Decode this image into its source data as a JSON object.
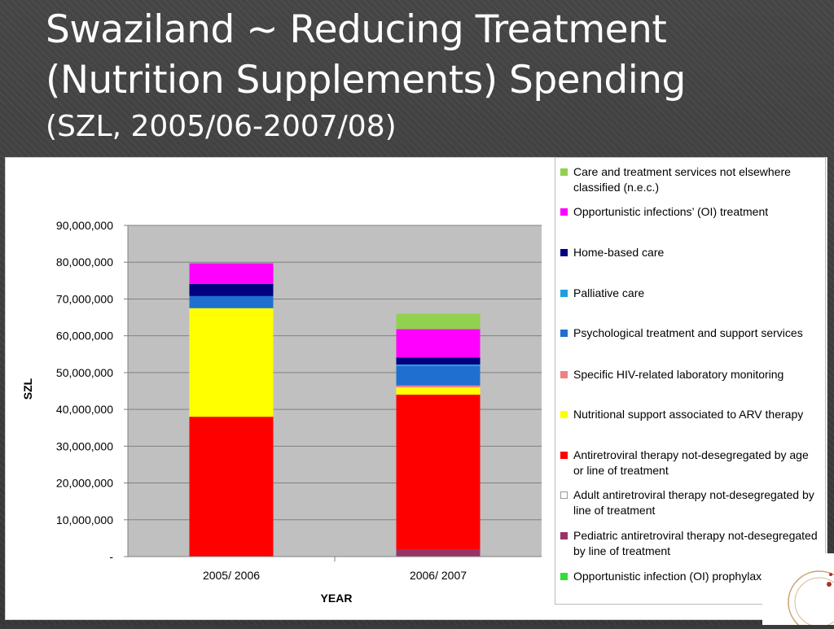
{
  "slide": {
    "title_line1": "Swaziland ~ Reducing Treatment",
    "title_line2": "(Nutrition Supplements) Spending",
    "title_line3": "(SZL, 2005/06-2007/08)"
  },
  "chart_data": {
    "type": "bar",
    "stacked": true,
    "xlabel": "YEAR",
    "ylabel": "SZL",
    "ylim": [
      0,
      90000000
    ],
    "yticks": [
      0,
      10000000,
      20000000,
      30000000,
      40000000,
      50000000,
      60000000,
      70000000,
      80000000,
      90000000
    ],
    "ytick_labels": [
      "-",
      "10,000,000",
      "20,000,000",
      "30,000,000",
      "40,000,000",
      "50,000,000",
      "60,000,000",
      "70,000,000",
      "80,000,000",
      "90,000,000"
    ],
    "categories": [
      "2005/ 2006",
      "2006/ 2007"
    ],
    "grid": true,
    "legend_position": "right",
    "series": [
      {
        "name": "Opportunistic infection (OI) prophylaxis",
        "color": "#33dd33",
        "values": [
          0,
          0
        ]
      },
      {
        "name": "Pediatric antiretroviral therapy not-desegregated by line of treatment",
        "color": "#993366",
        "values": [
          0,
          2000000
        ]
      },
      {
        "name": "Adult antiretroviral therapy not-desegregated by line of treatment",
        "color": "#ffffff",
        "values": [
          0,
          0
        ]
      },
      {
        "name": "Antiretroviral therapy not-desegregated by age or line of treatment",
        "color": "#ff0000",
        "values": [
          38000000,
          42000000
        ]
      },
      {
        "name": " Nutritional support associated to ARV therapy",
        "color": "#ffff00",
        "values": [
          29500000,
          2000000
        ]
      },
      {
        "name": "Specific HIV-related  laboratory monitoring",
        "color": "#f08080",
        "values": [
          0,
          500000
        ]
      },
      {
        "name": "Psychological treatment and support services",
        "color": "#1f6fd0",
        "values": [
          3300000,
          5300000
        ]
      },
      {
        "name": "Palliative care",
        "color": "#1ea0e0",
        "values": [
          0,
          400000
        ]
      },
      {
        "name": "Home-based care",
        "color": "#000080",
        "values": [
          3300000,
          1900000
        ]
      },
      {
        "name": "Opportunistic infections’ (OI) treatment",
        "color": "#ff00ff",
        "values": [
          5600000,
          7700000
        ]
      },
      {
        "name": "Care and treatment services not elsewhere classified (n.e.c.)",
        "color": "#92d050",
        "values": [
          0,
          4200000
        ]
      }
    ],
    "extra": {
      "series_name": " Nutritional support associated to ARV therapy",
      "note": ""
    }
  },
  "legend": {
    "items": [
      {
        "label": "Care and treatment services not elsewhere classified (n.e.c.)",
        "color": "#92d050"
      },
      {
        "label": "Opportunistic infections’ (OI) treatment",
        "color": "#ff00ff"
      },
      {
        "label": "Home-based care",
        "color": "#000080"
      },
      {
        "label": "Palliative care",
        "color": "#1ea0e0"
      },
      {
        "label": "Psychological treatment and support services",
        "color": "#1f6fd0"
      },
      {
        "label": "Specific HIV-related  laboratory monitoring",
        "color": "#f08080"
      },
      {
        "label": " Nutritional support associated to ARV therapy",
        "color": "#ffff00"
      },
      {
        "label": "Antiretroviral therapy not-desegregated by age or line of treatment",
        "color": "#ff0000"
      },
      {
        "label": "Adult antiretroviral therapy not-desegregated by line of treatment",
        "color": "#ffffff"
      },
      {
        "label": "Pediatric antiretroviral therapy not-desegregated by line of treatment",
        "color": "#993366"
      },
      {
        "label": "Opportunistic infection (OI) prophylaxis",
        "color": "#33dd33"
      }
    ]
  }
}
